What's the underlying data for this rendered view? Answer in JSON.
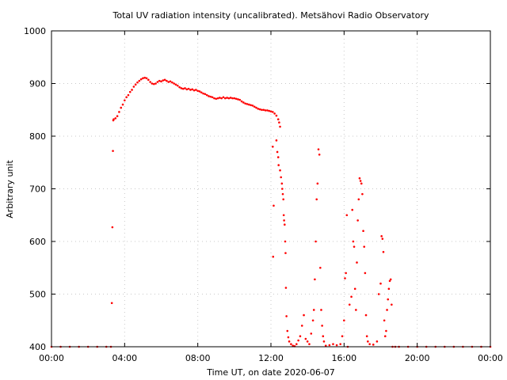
{
  "chart_data": {
    "type": "scatter",
    "title": "Total UV radiation intensity (uncalibrated). Metsähovi Radio Observatory",
    "xlabel": "Time UT, on date 2020-06-07",
    "ylabel": "Arbitrary unit",
    "xlim": [
      0,
      24
    ],
    "ylim": [
      400,
      1000
    ],
    "x_ticks": [
      {
        "value": 0,
        "label": "00:00"
      },
      {
        "value": 4,
        "label": "04:00"
      },
      {
        "value": 8,
        "label": "08:00"
      },
      {
        "value": 12,
        "label": "12:00"
      },
      {
        "value": 16,
        "label": "16:00"
      },
      {
        "value": 20,
        "label": "20:00"
      },
      {
        "value": 24,
        "label": "00:00"
      }
    ],
    "y_ticks": [
      {
        "value": 400,
        "label": "400"
      },
      {
        "value": 500,
        "label": "500"
      },
      {
        "value": 600,
        "label": "600"
      },
      {
        "value": 700,
        "label": "700"
      },
      {
        "value": 800,
        "label": "800"
      },
      {
        "value": 900,
        "label": "900"
      },
      {
        "value": 1000,
        "label": "1000"
      }
    ],
    "grid": true,
    "series": [
      {
        "color": "#ff0000",
        "points": [
          [
            0.0,
            400
          ],
          [
            0.5,
            400
          ],
          [
            1.0,
            400
          ],
          [
            1.5,
            400
          ],
          [
            2.0,
            400
          ],
          [
            2.5,
            400
          ],
          [
            3.0,
            400
          ],
          [
            3.25,
            400
          ],
          [
            3.3,
            483
          ],
          [
            3.33,
            627
          ],
          [
            3.36,
            772
          ],
          [
            3.38,
            830
          ],
          [
            3.4,
            832
          ],
          [
            3.5,
            834
          ],
          [
            3.6,
            838
          ],
          [
            3.7,
            846
          ],
          [
            3.8,
            854
          ],
          [
            3.9,
            860
          ],
          [
            4.0,
            868
          ],
          [
            4.1,
            874
          ],
          [
            4.2,
            878
          ],
          [
            4.3,
            884
          ],
          [
            4.4,
            888
          ],
          [
            4.5,
            894
          ],
          [
            4.6,
            898
          ],
          [
            4.7,
            902
          ],
          [
            4.8,
            905
          ],
          [
            4.9,
            908
          ],
          [
            5.0,
            910
          ],
          [
            5.1,
            911
          ],
          [
            5.2,
            910
          ],
          [
            5.3,
            907
          ],
          [
            5.4,
            903
          ],
          [
            5.5,
            900
          ],
          [
            5.6,
            899
          ],
          [
            5.7,
            900
          ],
          [
            5.8,
            903
          ],
          [
            5.9,
            905
          ],
          [
            6.0,
            904
          ],
          [
            6.1,
            906
          ],
          [
            6.2,
            907
          ],
          [
            6.3,
            905
          ],
          [
            6.4,
            903
          ],
          [
            6.5,
            904
          ],
          [
            6.6,
            902
          ],
          [
            6.7,
            900
          ],
          [
            6.8,
            898
          ],
          [
            6.9,
            896
          ],
          [
            7.0,
            893
          ],
          [
            7.1,
            891
          ],
          [
            7.2,
            890
          ],
          [
            7.3,
            891
          ],
          [
            7.4,
            889
          ],
          [
            7.5,
            890
          ],
          [
            7.6,
            888
          ],
          [
            7.7,
            889
          ],
          [
            7.8,
            887
          ],
          [
            7.9,
            888
          ],
          [
            8.0,
            886
          ],
          [
            8.1,
            885
          ],
          [
            8.2,
            883
          ],
          [
            8.3,
            881
          ],
          [
            8.4,
            880
          ],
          [
            8.5,
            878
          ],
          [
            8.6,
            876
          ],
          [
            8.7,
            875
          ],
          [
            8.8,
            874
          ],
          [
            8.9,
            872
          ],
          [
            9.0,
            871
          ],
          [
            9.1,
            872
          ],
          [
            9.2,
            873
          ],
          [
            9.3,
            872
          ],
          [
            9.4,
            874
          ],
          [
            9.5,
            872
          ],
          [
            9.6,
            873
          ],
          [
            9.7,
            872
          ],
          [
            9.8,
            873
          ],
          [
            9.9,
            872
          ],
          [
            10.0,
            872
          ],
          [
            10.1,
            871
          ],
          [
            10.2,
            870
          ],
          [
            10.3,
            869
          ],
          [
            10.4,
            866
          ],
          [
            10.5,
            864
          ],
          [
            10.6,
            862
          ],
          [
            10.7,
            861
          ],
          [
            10.8,
            860
          ],
          [
            10.9,
            859
          ],
          [
            11.0,
            858
          ],
          [
            11.1,
            856
          ],
          [
            11.2,
            854
          ],
          [
            11.3,
            852
          ],
          [
            11.4,
            851
          ],
          [
            11.5,
            850
          ],
          [
            11.6,
            850
          ],
          [
            11.7,
            849
          ],
          [
            11.8,
            849
          ],
          [
            11.9,
            848
          ],
          [
            12.0,
            847
          ],
          [
            12.1,
            846
          ],
          [
            12.2,
            843
          ],
          [
            12.3,
            839
          ],
          [
            12.4,
            832
          ],
          [
            12.45,
            826
          ],
          [
            12.5,
            818
          ],
          [
            12.1,
            780
          ],
          [
            12.15,
            668
          ],
          [
            12.12,
            571
          ],
          [
            12.3,
            792
          ],
          [
            12.35,
            770
          ],
          [
            12.4,
            760
          ],
          [
            12.42,
            745
          ],
          [
            12.5,
            735
          ],
          [
            12.55,
            722
          ],
          [
            12.6,
            710
          ],
          [
            12.62,
            700
          ],
          [
            12.65,
            690
          ],
          [
            12.68,
            680
          ],
          [
            12.7,
            650
          ],
          [
            12.72,
            640
          ],
          [
            12.75,
            632
          ],
          [
            12.78,
            600
          ],
          [
            12.8,
            578
          ],
          [
            12.82,
            512
          ],
          [
            12.85,
            458
          ],
          [
            12.9,
            430
          ],
          [
            12.95,
            418
          ],
          [
            13.0,
            410
          ],
          [
            13.1,
            405
          ],
          [
            13.2,
            402
          ],
          [
            13.3,
            401
          ],
          [
            13.4,
            405
          ],
          [
            13.5,
            412
          ],
          [
            13.6,
            420
          ],
          [
            13.7,
            440
          ],
          [
            13.8,
            460
          ],
          [
            13.9,
            415
          ],
          [
            14.0,
            410
          ],
          [
            14.1,
            405
          ],
          [
            14.2,
            425
          ],
          [
            14.3,
            450
          ],
          [
            14.35,
            470
          ],
          [
            14.4,
            528
          ],
          [
            14.45,
            600
          ],
          [
            14.5,
            680
          ],
          [
            14.55,
            710
          ],
          [
            14.6,
            775
          ],
          [
            14.65,
            765
          ],
          [
            14.7,
            550
          ],
          [
            14.75,
            470
          ],
          [
            14.8,
            440
          ],
          [
            14.85,
            420
          ],
          [
            14.9,
            410
          ],
          [
            15.0,
            402
          ],
          [
            15.2,
            403
          ],
          [
            15.4,
            405
          ],
          [
            15.6,
            403
          ],
          [
            15.8,
            405
          ],
          [
            15.9,
            420
          ],
          [
            16.0,
            450
          ],
          [
            16.05,
            530
          ],
          [
            16.1,
            540
          ],
          [
            16.15,
            650
          ],
          [
            16.2,
            400
          ],
          [
            16.3,
            480
          ],
          [
            16.4,
            495
          ],
          [
            16.45,
            660
          ],
          [
            16.5,
            600
          ],
          [
            16.55,
            590
          ],
          [
            16.6,
            510
          ],
          [
            16.65,
            470
          ],
          [
            16.7,
            560
          ],
          [
            16.75,
            640
          ],
          [
            16.8,
            680
          ],
          [
            16.85,
            720
          ],
          [
            16.9,
            715
          ],
          [
            16.95,
            710
          ],
          [
            17.0,
            690
          ],
          [
            17.05,
            620
          ],
          [
            17.1,
            590
          ],
          [
            17.15,
            540
          ],
          [
            17.2,
            460
          ],
          [
            17.25,
            420
          ],
          [
            17.3,
            410
          ],
          [
            17.4,
            405
          ],
          [
            17.6,
            404
          ],
          [
            17.8,
            410
          ],
          [
            17.9,
            500
          ],
          [
            18.0,
            520
          ],
          [
            18.05,
            610
          ],
          [
            18.1,
            605
          ],
          [
            18.15,
            580
          ],
          [
            18.2,
            450
          ],
          [
            18.25,
            420
          ],
          [
            18.3,
            430
          ],
          [
            18.35,
            470
          ],
          [
            18.4,
            490
          ],
          [
            18.45,
            510
          ],
          [
            18.5,
            525
          ],
          [
            18.55,
            528
          ],
          [
            18.6,
            480
          ],
          [
            18.65,
            400
          ],
          [
            18.8,
            400
          ],
          [
            19.0,
            400
          ],
          [
            19.5,
            400
          ],
          [
            20.0,
            400
          ],
          [
            20.5,
            400
          ],
          [
            21.0,
            400
          ],
          [
            21.5,
            400
          ],
          [
            22.0,
            400
          ],
          [
            22.5,
            400
          ],
          [
            23.0,
            400
          ],
          [
            23.5,
            400
          ],
          [
            24.0,
            400
          ]
        ]
      }
    ]
  }
}
